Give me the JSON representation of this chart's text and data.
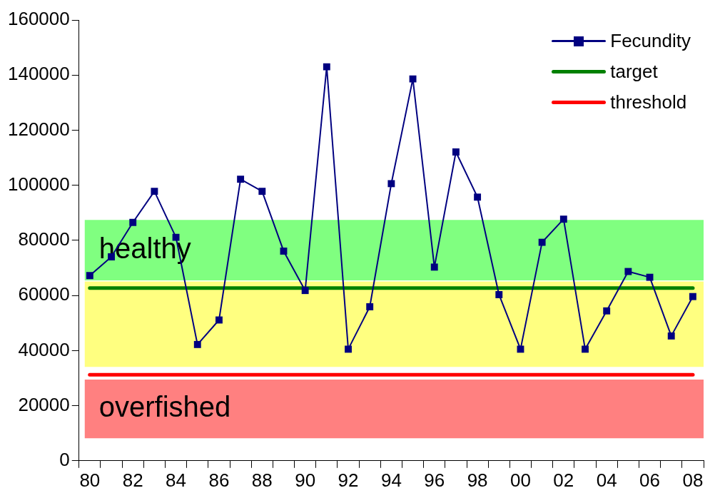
{
  "chart_data": {
    "type": "line",
    "categories": [
      "80",
      null,
      "82",
      null,
      "84",
      null,
      "86",
      null,
      "88",
      null,
      "90",
      null,
      "92",
      null,
      "94",
      null,
      "96",
      null,
      "98",
      null,
      "00",
      null,
      "02",
      null,
      "04",
      null,
      "06",
      null,
      "08"
    ],
    "series": [
      {
        "name": "Fecundity",
        "color": "#000080",
        "values": [
          67200,
          74000,
          86500,
          97800,
          81100,
          42200,
          51100,
          102200,
          97800,
          76100,
          61800,
          143000,
          40500,
          55900,
          100600,
          138600,
          70300,
          112100,
          95700,
          60300,
          40500,
          79300,
          87700,
          40500,
          54400,
          68700,
          66600,
          45300,
          59600
        ]
      }
    ],
    "ylim": [
      0,
      160000
    ],
    "yticks": [
      0,
      20000,
      40000,
      60000,
      80000,
      100000,
      120000,
      140000,
      160000
    ],
    "marker": "square",
    "line_style": "solid",
    "grid": false,
    "legend": "top right",
    "ref_lines": [
      {
        "axis": "y",
        "value": 62700,
        "label": "target",
        "color": "#008000"
      },
      {
        "axis": "y",
        "value": 31200,
        "label": "threshold",
        "color": "#ff0000"
      }
    ],
    "bands": [
      {
        "axis": "y",
        "from": 34100,
        "to": 65100,
        "color": "#ffff80"
      },
      {
        "axis": "y",
        "from": 65500,
        "to": 87400,
        "label": "healthy",
        "color": "#80ff80"
      },
      {
        "axis": "y",
        "from": 8200,
        "to": 29500,
        "label": "overfished",
        "color": "#ff8080"
      }
    ]
  }
}
